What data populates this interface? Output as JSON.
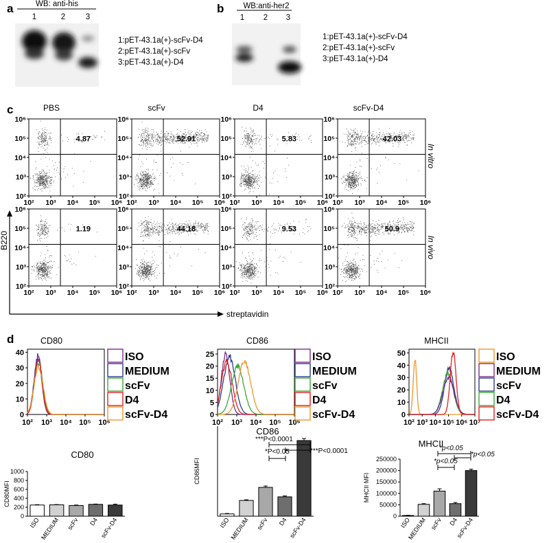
{
  "panel_a": {
    "letter": "a",
    "title": "WB: anti-his",
    "lanes": [
      "1",
      "2",
      "3"
    ],
    "legend": [
      "1:pET-43.1a(+)-scFv-D4",
      "2:pET-43.1a(+)-scFv",
      "3:pET-43.1a(+)-D4"
    ]
  },
  "panel_b": {
    "letter": "b",
    "title": "WB:anti-her2",
    "lanes": [
      "1",
      "2",
      "3"
    ],
    "legend": [
      "1:pET-43.1a(+)-scFv-D4",
      "2:pET-43.1a(+)-scFv",
      "3:pET-43.1a(+)-D4"
    ]
  },
  "panel_c": {
    "letter": "c",
    "columns": [
      "PBS",
      "scFv",
      "D4",
      "scFv-D4"
    ],
    "rows": [
      "In vitro",
      "In vivo"
    ],
    "ylabel": "B220",
    "xlabel": "streptavidin",
    "tick_labels": [
      "10²",
      "10³",
      "10⁴",
      "10⁵",
      "10⁶"
    ]
  },
  "panel_d": {
    "letter": "d",
    "histograms": [
      {
        "title": "CD80",
        "yticks": [
          "0",
          "10",
          "20",
          "30",
          "40"
        ],
        "xticks": [
          "10²",
          "10³",
          "10⁴",
          "10⁵",
          "10⁶"
        ]
      },
      {
        "title": "CD86",
        "yticks": [
          "0",
          "5",
          "10",
          "15",
          "20",
          "25"
        ],
        "xticks": [
          "10²",
          "10³",
          "10⁴",
          "10⁵",
          "10⁶"
        ]
      },
      {
        "title": "MHCII",
        "yticks": [
          "0",
          "10",
          "20",
          "30",
          "40",
          "50"
        ],
        "xticks": [
          "10²",
          "10³",
          "10⁴",
          "10⁵",
          "10⁶",
          "10⁷"
        ]
      }
    ],
    "legend_a": [
      {
        "label": "ISO",
        "color": "#7b2d8e"
      },
      {
        "label": "MEDIUM",
        "color": "#2e3d8f"
      },
      {
        "label": "scFv",
        "color": "#3aa83a"
      },
      {
        "label": "D4",
        "color": "#e02020"
      },
      {
        "label": "scFv-D4",
        "color": "#f0962a"
      }
    ],
    "legend_b": [
      {
        "label": "ISO",
        "color": "#f0962a"
      },
      {
        "label": "MEDIUM",
        "color": "#7b2d8e"
      },
      {
        "label": "scFv",
        "color": "#2e3d8f"
      },
      {
        "label": "D4",
        "color": "#3aa83a"
      },
      {
        "label": "scFv-D4",
        "color": "#e02020"
      }
    ],
    "bar_annotations": {
      "cd86": [
        "*P<0.05",
        "***P<0.0001",
        "***P<0.0001"
      ],
      "mhcii": [
        "*p<0.05",
        "*p<0.05",
        "*p<0.05"
      ]
    }
  },
  "chart_data": [
    {
      "type": "scatter",
      "panel": "c",
      "title": "",
      "columns": [
        "PBS",
        "scFv",
        "D4",
        "scFv-D4"
      ],
      "rows": [
        "In vitro",
        "In vivo"
      ],
      "quadrant_percentages": [
        [
          4.87,
          52.91,
          5.83,
          42.03
        ],
        [
          1.19,
          44.18,
          9.53,
          50.9
        ]
      ],
      "xlabel": "streptavidin",
      "ylabel": "B220",
      "xlim": [
        100,
        1000000
      ],
      "ylim": [
        100,
        1000000
      ],
      "scale": "log"
    },
    {
      "type": "bar",
      "title": "CD80",
      "ylabel": "CD80MFI",
      "categories": [
        "ISO",
        "MEDIUM",
        "scFv",
        "D4",
        "scFv-D4"
      ],
      "values": [
        250,
        255,
        240,
        265,
        250
      ],
      "colors": [
        "#ffffff",
        "#d2d2d2",
        "#a8a8a8",
        "#6e6e6e",
        "#3a3a3a"
      ],
      "ylim": [
        0,
        1000
      ],
      "yticks": [
        0,
        200,
        400,
        600,
        800,
        1000
      ]
    },
    {
      "type": "bar",
      "title": "CD86",
      "ylabel": "CD86MFI",
      "categories": [
        "ISO",
        "MEDIUM",
        "scFv",
        "D4",
        "scFv-D4"
      ],
      "values": [
        50,
        350,
        640,
        430,
        1680
      ],
      "colors": [
        "#ffffff",
        "#d2d2d2",
        "#a8a8a8",
        "#6e6e6e",
        "#3a3a3a"
      ],
      "ylim": [
        0,
        2000
      ]
    },
    {
      "type": "bar",
      "title": "MHCII",
      "ylabel": "MHCII MFI",
      "categories": [
        "ISO",
        "MEDIUM",
        "scFv",
        "D4",
        "scFv-D4"
      ],
      "values": [
        3000,
        52000,
        110000,
        55000,
        200000
      ],
      "colors": [
        "#ffffff",
        "#d2d2d2",
        "#a8a8a8",
        "#6e6e6e",
        "#3a3a3a"
      ],
      "ylim": [
        0,
        250000
      ],
      "yticks": [
        0,
        50000,
        100000,
        150000,
        200000,
        250000
      ]
    }
  ]
}
